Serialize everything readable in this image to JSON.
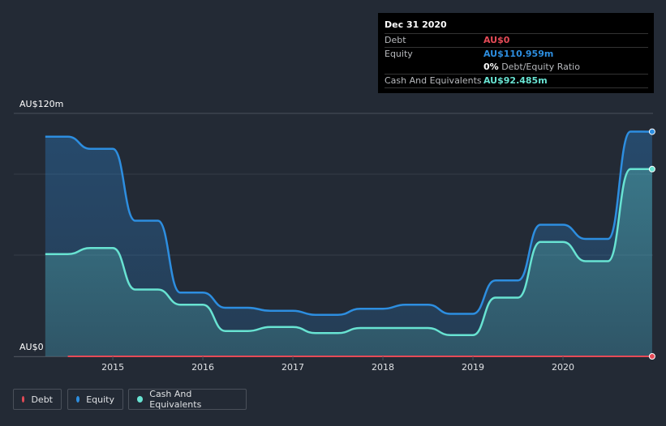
{
  "colors": {
    "background": "#232a35",
    "debt": "#e64b57",
    "equity": "#2d8ee0",
    "cash": "#68e3d2"
  },
  "tooltip": {
    "date": "Dec 31 2020",
    "rows": [
      {
        "label": "Debt",
        "value": "AU$0",
        "color": "#e64b57"
      },
      {
        "label": "Equity",
        "value": "AU$110.959m",
        "color": "#2d8ee0"
      },
      {
        "label": "",
        "ratio_value": "0%",
        "ratio_label": "Debt/Equity Ratio"
      },
      {
        "label": "Cash And Equivalents",
        "value": "AU$92.485m",
        "color": "#68e3d2"
      }
    ]
  },
  "legend": {
    "items": [
      {
        "label": "Debt",
        "color": "#e64b57"
      },
      {
        "label": "Equity",
        "color": "#2d8ee0"
      },
      {
        "label": "Cash And Equivalents",
        "color": "#68e3d2"
      }
    ]
  },
  "chart_data": {
    "type": "area",
    "title": "",
    "xlabel": "",
    "ylabel": "",
    "ylim": [
      0,
      120
    ],
    "y_unit": "AU$m",
    "y_tick_labels": [
      {
        "value": 120,
        "label": "AU$120m"
      },
      {
        "value": 0,
        "label": "AU$0"
      }
    ],
    "x_tick_labels": [
      {
        "value": 2015,
        "label": "2015"
      },
      {
        "value": 2016,
        "label": "2016"
      },
      {
        "value": 2017,
        "label": "2017"
      },
      {
        "value": 2018,
        "label": "2018"
      },
      {
        "value": 2019,
        "label": "2019"
      },
      {
        "value": 2020,
        "label": "2020"
      }
    ],
    "xlim": [
      2013.9,
      2021.0
    ],
    "grid": true,
    "legend_position": "bottom-left",
    "series": [
      {
        "name": "Equity",
        "color": "#2d8ee0",
        "points": [
          [
            2014.25,
            108.5
          ],
          [
            2014.5,
            108.5
          ],
          [
            2014.75,
            102.5
          ],
          [
            2015.0,
            102.5
          ],
          [
            2015.25,
            67.0
          ],
          [
            2015.5,
            67.0
          ],
          [
            2015.75,
            31.5
          ],
          [
            2016.0,
            31.5
          ],
          [
            2016.25,
            24.0
          ],
          [
            2016.5,
            24.0
          ],
          [
            2016.75,
            22.5
          ],
          [
            2017.0,
            22.5
          ],
          [
            2017.25,
            20.5
          ],
          [
            2017.5,
            20.5
          ],
          [
            2017.75,
            23.5
          ],
          [
            2018.0,
            23.5
          ],
          [
            2018.25,
            25.5
          ],
          [
            2018.5,
            25.5
          ],
          [
            2018.75,
            21.0
          ],
          [
            2019.0,
            21.0
          ],
          [
            2019.25,
            37.5
          ],
          [
            2019.5,
            37.5
          ],
          [
            2019.75,
            65.0
          ],
          [
            2020.0,
            65.0
          ],
          [
            2020.25,
            58.0
          ],
          [
            2020.5,
            58.0
          ],
          [
            2020.75,
            111.0
          ],
          [
            2020.99,
            110.959
          ]
        ]
      },
      {
        "name": "Cash And Equivalents",
        "color": "#68e3d2",
        "points": [
          [
            2014.25,
            50.5
          ],
          [
            2014.5,
            50.5
          ],
          [
            2014.75,
            53.5
          ],
          [
            2015.0,
            53.5
          ],
          [
            2015.25,
            33.0
          ],
          [
            2015.5,
            33.0
          ],
          [
            2015.75,
            25.5
          ],
          [
            2016.0,
            25.5
          ],
          [
            2016.25,
            12.5
          ],
          [
            2016.5,
            12.5
          ],
          [
            2016.75,
            14.5
          ],
          [
            2017.0,
            14.5
          ],
          [
            2017.25,
            11.5
          ],
          [
            2017.5,
            11.5
          ],
          [
            2017.75,
            14.0
          ],
          [
            2018.0,
            14.0
          ],
          [
            2018.25,
            14.0
          ],
          [
            2018.5,
            14.0
          ],
          [
            2018.75,
            10.5
          ],
          [
            2019.0,
            10.5
          ],
          [
            2019.25,
            29.0
          ],
          [
            2019.5,
            29.0
          ],
          [
            2019.75,
            56.5
          ],
          [
            2020.0,
            56.5
          ],
          [
            2020.25,
            47.0
          ],
          [
            2020.5,
            47.0
          ],
          [
            2020.75,
            92.5
          ],
          [
            2020.99,
            92.485
          ]
        ]
      },
      {
        "name": "Debt",
        "color": "#e64b57",
        "points": [
          [
            2014.5,
            0
          ],
          [
            2020.99,
            0
          ]
        ]
      }
    ]
  }
}
